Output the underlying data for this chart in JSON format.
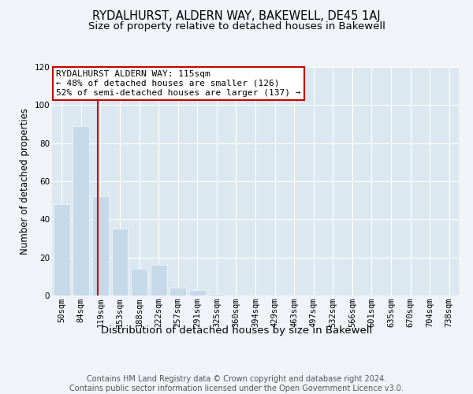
{
  "title": "RYDALHURST, ALDERN WAY, BAKEWELL, DE45 1AJ",
  "subtitle": "Size of property relative to detached houses in Bakewell",
  "xlabel": "Distribution of detached houses by size in Bakewell",
  "ylabel": "Number of detached properties",
  "bar_color": "#c6d9e8",
  "bar_edgecolor": "#c6d9e8",
  "axes_facecolor": "#dce8f0",
  "fig_facecolor": "#f0f4f8",
  "grid_color": "#ffffff",
  "categories": [
    "50sqm",
    "84sqm",
    "119sqm",
    "153sqm",
    "188sqm",
    "222sqm",
    "257sqm",
    "291sqm",
    "325sqm",
    "360sqm",
    "394sqm",
    "429sqm",
    "463sqm",
    "497sqm",
    "532sqm",
    "566sqm",
    "601sqm",
    "635sqm",
    "670sqm",
    "704sqm",
    "738sqm"
  ],
  "values": [
    48,
    89,
    52,
    35,
    14,
    16,
    4,
    3,
    1,
    0,
    0,
    0,
    0,
    0,
    0,
    0,
    0,
    0,
    0,
    0,
    0
  ],
  "ylim": [
    0,
    120
  ],
  "yticks": [
    0,
    20,
    40,
    60,
    80,
    100,
    120
  ],
  "vline_x_index": 1.88,
  "annotation_text": "RYDALHURST ALDERN WAY: 115sqm\n← 48% of detached houses are smaller (126)\n52% of semi-detached houses are larger (137) →",
  "annotation_box_facecolor": "#ffffff",
  "annotation_border_color": "#cc0000",
  "vline_color": "#cc0000",
  "footer_text": "Contains HM Land Registry data © Crown copyright and database right 2024.\nContains public sector information licensed under the Open Government Licence v3.0.",
  "title_fontsize": 10.5,
  "subtitle_fontsize": 9.5,
  "xlabel_fontsize": 9.5,
  "ylabel_fontsize": 8.5,
  "tick_fontsize": 7.5,
  "annotation_fontsize": 8,
  "footer_fontsize": 7
}
